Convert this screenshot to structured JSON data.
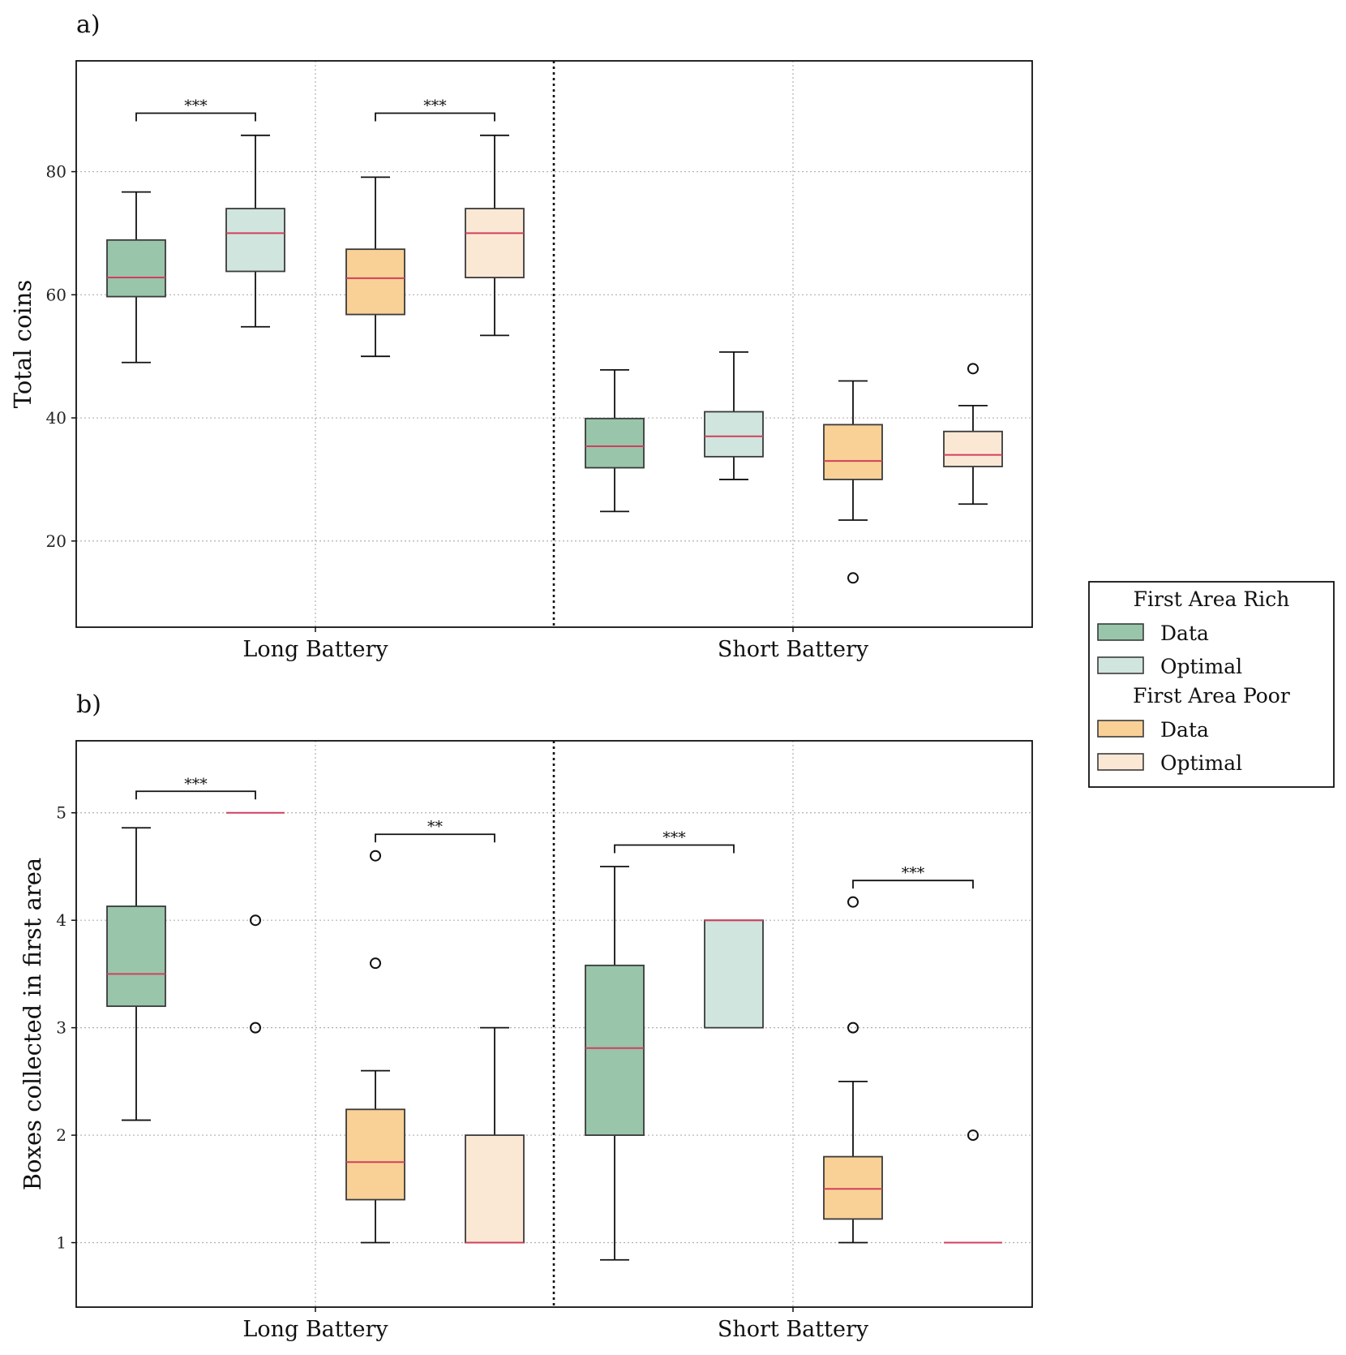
{
  "chart_data": [
    {
      "type": "box",
      "panel_label": "a)",
      "ylabel": "Total coins",
      "ylim": [
        6,
        98
      ],
      "yticks": [
        20,
        40,
        60,
        80
      ],
      "categories": [
        "Long Battery",
        "Short Battery"
      ],
      "grid": true,
      "boxes": [
        {
          "category": "Long Battery",
          "group": "First Area Rich",
          "series": "Data",
          "whisker_low": 49,
          "q1": 59.7,
          "median": 62.8,
          "q3": 68.9,
          "whisker_high": 76.7,
          "outliers": []
        },
        {
          "category": "Long Battery",
          "group": "First Area Rich",
          "series": "Optimal",
          "whisker_low": 54.8,
          "q1": 63.8,
          "median": 70,
          "q3": 74,
          "whisker_high": 85.9,
          "outliers": []
        },
        {
          "category": "Long Battery",
          "group": "First Area Poor",
          "series": "Data",
          "whisker_low": 50,
          "q1": 56.8,
          "median": 62.7,
          "q3": 67.4,
          "whisker_high": 79.1,
          "outliers": []
        },
        {
          "category": "Long Battery",
          "group": "First Area Poor",
          "series": "Optimal",
          "whisker_low": 53.4,
          "q1": 62.8,
          "median": 70,
          "q3": 74,
          "whisker_high": 85.9,
          "outliers": []
        },
        {
          "category": "Short Battery",
          "group": "First Area Rich",
          "series": "Data",
          "whisker_low": 24.8,
          "q1": 31.9,
          "median": 35.4,
          "q3": 39.9,
          "whisker_high": 47.8,
          "outliers": []
        },
        {
          "category": "Short Battery",
          "group": "First Area Rich",
          "series": "Optimal",
          "whisker_low": 30,
          "q1": 33.7,
          "median": 37,
          "q3": 41,
          "whisker_high": 50.7,
          "outliers": []
        },
        {
          "category": "Short Battery",
          "group": "First Area Poor",
          "series": "Data",
          "whisker_low": 23.4,
          "q1": 30,
          "median": 33,
          "q3": 38.9,
          "whisker_high": 46,
          "outliers": [
            14
          ]
        },
        {
          "category": "Short Battery",
          "group": "First Area Poor",
          "series": "Optimal",
          "whisker_low": 26,
          "q1": 32.1,
          "median": 34,
          "q3": 37.8,
          "whisker_high": 42,
          "outliers": [
            48
          ]
        }
      ],
      "significance": [
        {
          "from": 0,
          "to": 1,
          "label": "***",
          "y": 89.5
        },
        {
          "from": 2,
          "to": 3,
          "label": "***",
          "y": 89.5
        }
      ]
    },
    {
      "type": "box",
      "panel_label": "b)",
      "ylabel": "Boxes collected in first area",
      "ylim": [
        0.4,
        5.67
      ],
      "yticks": [
        1,
        2,
        3,
        4,
        5
      ],
      "categories": [
        "Long Battery",
        "Short Battery"
      ],
      "grid": true,
      "boxes": [
        {
          "category": "Long Battery",
          "group": "First Area Rich",
          "series": "Data",
          "whisker_low": 2.14,
          "q1": 3.2,
          "median": 3.5,
          "q3": 4.13,
          "whisker_high": 4.86,
          "outliers": []
        },
        {
          "category": "Long Battery",
          "group": "First Area Rich",
          "series": "Optimal",
          "whisker_low": 5,
          "q1": 5,
          "median": 5,
          "q3": 5,
          "whisker_high": 5,
          "outliers": [
            4,
            3
          ]
        },
        {
          "category": "Long Battery",
          "group": "First Area Poor",
          "series": "Data",
          "whisker_low": 1,
          "q1": 1.4,
          "median": 1.75,
          "q3": 2.24,
          "whisker_high": 2.6,
          "outliers": [
            4.6,
            3.6
          ]
        },
        {
          "category": "Long Battery",
          "group": "First Area Poor",
          "series": "Optimal",
          "whisker_low": 1,
          "q1": 1,
          "median": 1,
          "q3": 2,
          "whisker_high": 3,
          "outliers": []
        },
        {
          "category": "Short Battery",
          "group": "First Area Rich",
          "series": "Data",
          "whisker_low": 0.84,
          "q1": 2,
          "median": 2.81,
          "q3": 3.58,
          "whisker_high": 4.5,
          "outliers": []
        },
        {
          "category": "Short Battery",
          "group": "First Area Rich",
          "series": "Optimal",
          "whisker_low": 3,
          "q1": 3,
          "median": 4,
          "q3": 4,
          "whisker_high": 4,
          "outliers": []
        },
        {
          "category": "Short Battery",
          "group": "First Area Poor",
          "series": "Data",
          "whisker_low": 1,
          "q1": 1.22,
          "median": 1.5,
          "q3": 1.8,
          "whisker_high": 2.5,
          "outliers": [
            4.17,
            3
          ]
        },
        {
          "category": "Short Battery",
          "group": "First Area Poor",
          "series": "Optimal",
          "whisker_low": 1,
          "q1": 1,
          "median": 1,
          "q3": 1,
          "whisker_high": 1,
          "outliers": [
            2
          ]
        }
      ],
      "significance": [
        {
          "from": 0,
          "to": 1,
          "label": "***",
          "y": 5.2
        },
        {
          "from": 2,
          "to": 3,
          "label": "**",
          "y": 4.8
        },
        {
          "from": 4,
          "to": 5,
          "label": "***",
          "y": 4.7
        },
        {
          "from": 6,
          "to": 7,
          "label": "***",
          "y": 4.37
        }
      ]
    }
  ],
  "legend": {
    "groups": [
      {
        "title": "First Area Rich",
        "items": [
          {
            "label": "Data",
            "color": "#99c5ab"
          },
          {
            "label": "Optimal",
            "color": "#d0e5de"
          }
        ]
      },
      {
        "title": "First Area Poor",
        "items": [
          {
            "label": "Data",
            "color": "#f9d196"
          },
          {
            "label": "Optimal",
            "color": "#fbe8d4"
          }
        ]
      }
    ]
  },
  "colors": {
    "rich_data": "#99c5ab",
    "rich_optimal": "#d0e5de",
    "poor_data": "#f9d196",
    "poor_optimal": "#fbe8d4",
    "median": "#d0405e",
    "box_edge": "#3a3a3a"
  }
}
